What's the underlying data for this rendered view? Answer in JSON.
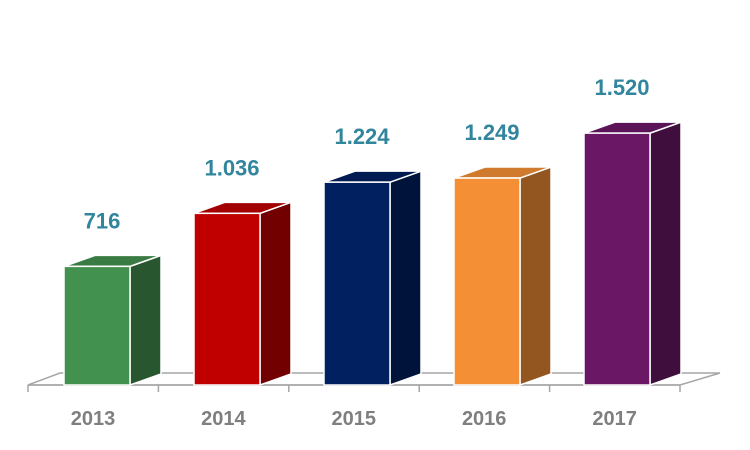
{
  "chart_data": {
    "type": "bar",
    "title": "",
    "xlabel": "",
    "ylabel": "",
    "categories": [
      "2013",
      "2014",
      "2015",
      "2016",
      "2017"
    ],
    "values": [
      716,
      1036,
      1224,
      1249,
      1520
    ],
    "value_labels": [
      "716",
      "1.036",
      "1.224",
      "1.249",
      "1.520"
    ],
    "ylim": [
      0,
      1800
    ],
    "grid": false,
    "legend": "none",
    "colors": {
      "bars": [
        "#43914f",
        "#c00000",
        "#002060",
        "#f58f35",
        "#6a1766"
      ],
      "value_label": "#31859c",
      "tick_label": "#7f7f7f",
      "axis": "#a6a6a6"
    }
  }
}
